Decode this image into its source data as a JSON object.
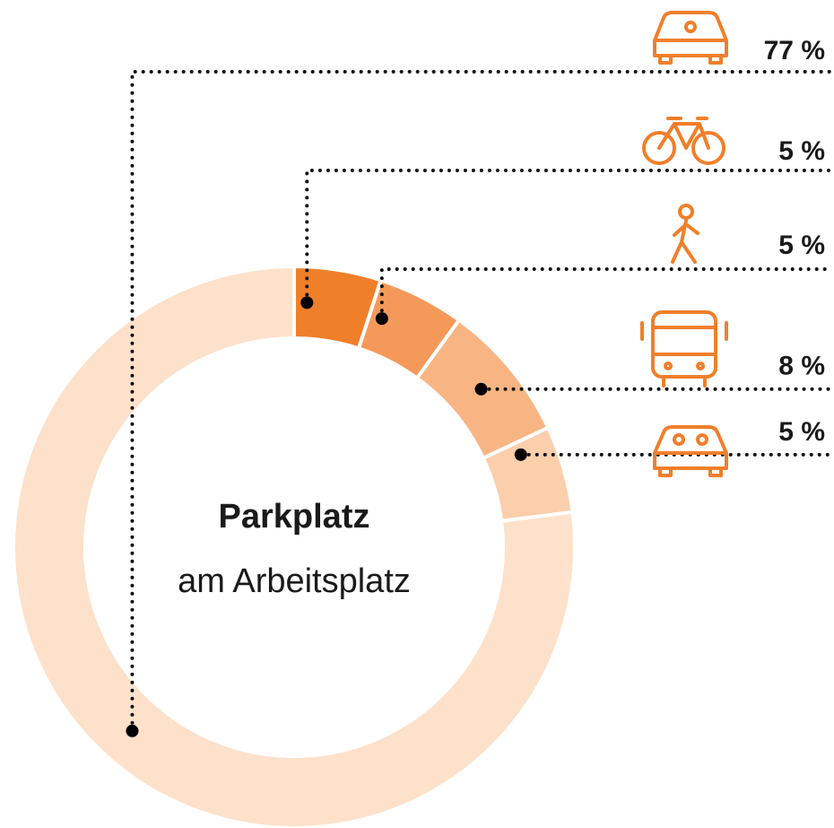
{
  "chart_data": {
    "type": "donut",
    "title": "Parkplatz",
    "subtitle": "am Arbeitsplatz",
    "values": [
      5,
      5,
      8,
      5,
      77
    ],
    "value_labels": [
      "5 %",
      "5 %",
      "8 %",
      "5 %",
      "77 %"
    ],
    "colors": [
      "#f07f2a",
      "#f5995a",
      "#f8b583",
      "#fbcfac",
      "#fde1cb"
    ]
  }
}
